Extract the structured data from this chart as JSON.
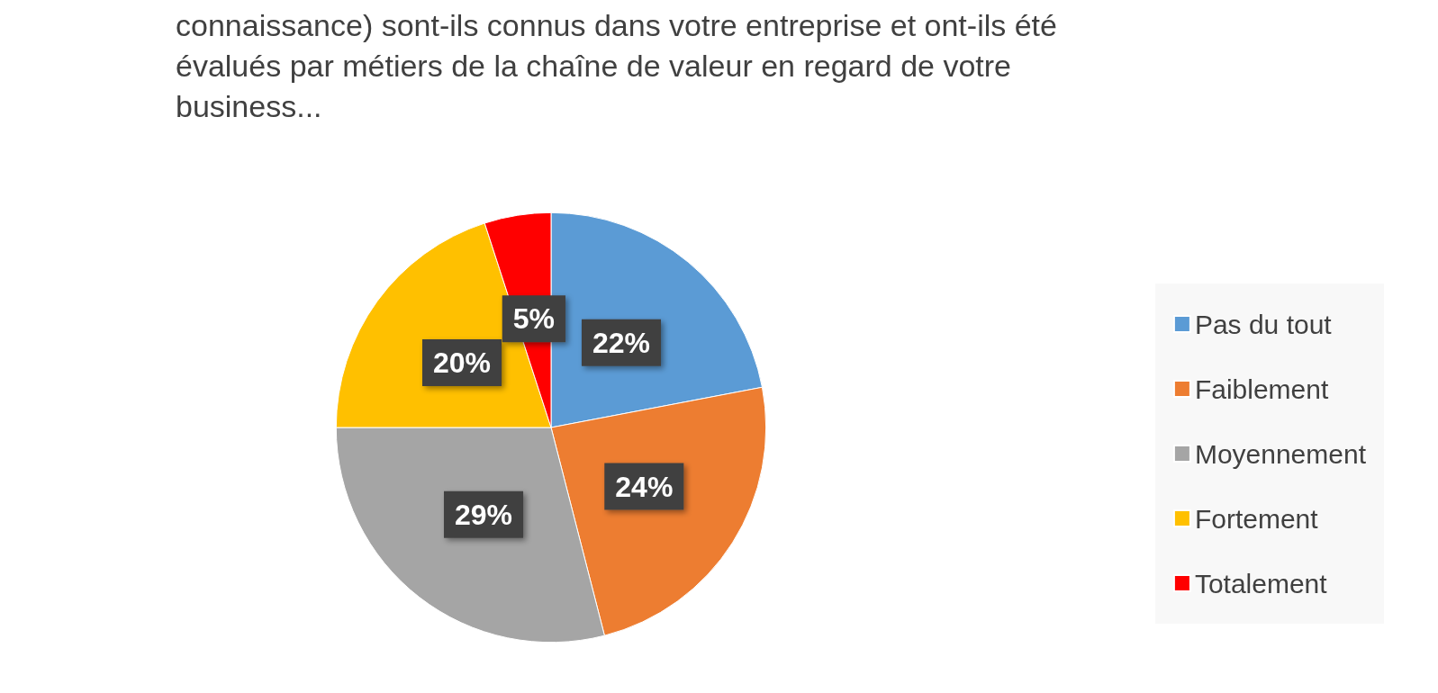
{
  "chart_data": {
    "type": "pie",
    "title": "connaissance) sont-ils connus dans votre entreprise et ont-ils été évalués par métiers de la chaîne de valeur en regard de votre business...",
    "categories": [
      "Pas du tout",
      "Faiblement",
      "Moyennement",
      "Fortement",
      "Totalement"
    ],
    "values": [
      22,
      24,
      29,
      20,
      5
    ],
    "colors": [
      "#5b9bd5",
      "#ed7d31",
      "#a5a5a5",
      "#ffc000",
      "#ff0000"
    ],
    "value_labels": [
      "22%",
      "24%",
      "29%",
      "20%",
      "5%"
    ],
    "legend": "right"
  }
}
